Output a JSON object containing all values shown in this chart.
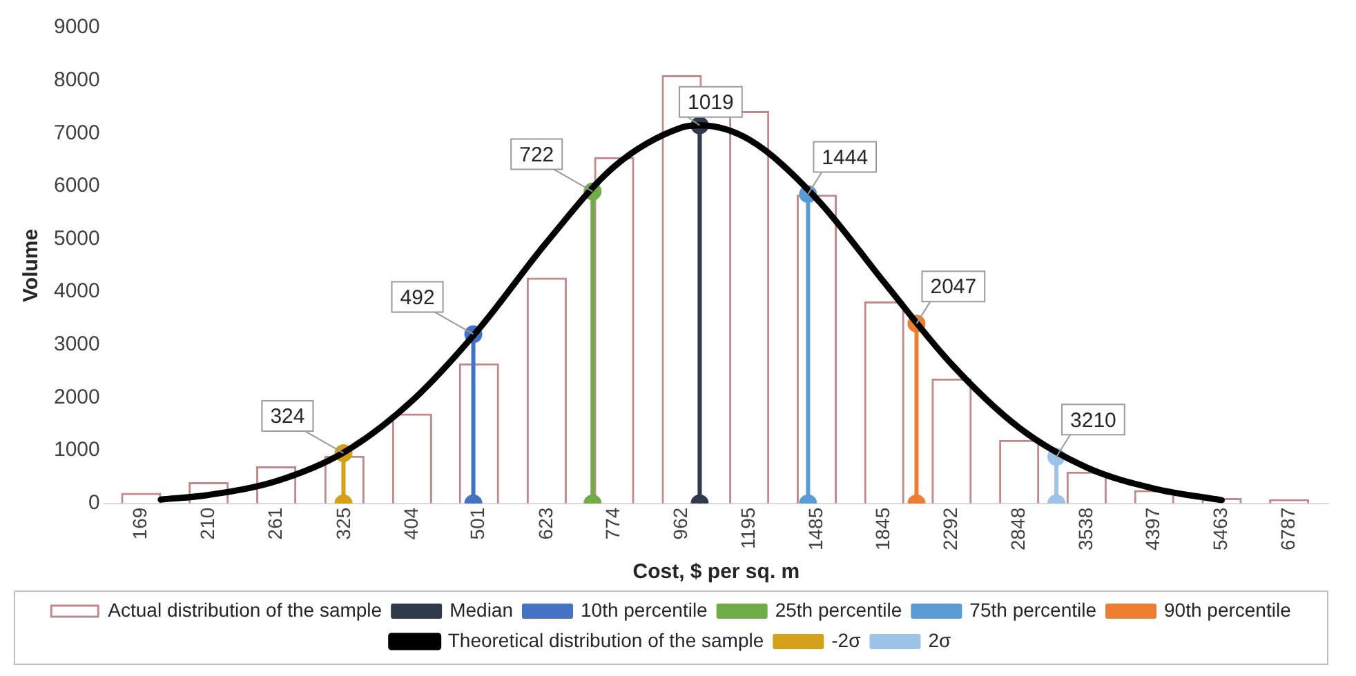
{
  "chart_data": {
    "type": "bar",
    "xlabel": "Cost, $ per sq. m",
    "ylabel": "Volume",
    "log": "x",
    "x": [
      169,
      210,
      261,
      325,
      404,
      501,
      623,
      774,
      962,
      1195,
      1485,
      1845,
      2292,
      2848,
      3538,
      4397,
      5463,
      6787
    ],
    "xlim": [
      150,
      7700
    ],
    "xticks": [
      169,
      210,
      261,
      325,
      404,
      501,
      623,
      774,
      962,
      1195,
      1485,
      1845,
      2292,
      2848,
      3538,
      4397,
      5463,
      6787
    ],
    "ylim": [
      0,
      9000
    ],
    "yticks": [
      0,
      1000,
      2000,
      3000,
      4000,
      5000,
      6000,
      7000,
      8000,
      9000
    ],
    "grid": false,
    "legend": "bottom",
    "series": [
      {
        "name": "Actual distribution of the sample",
        "color": "#c08a8a",
        "values": [
          200,
          400,
          700,
          900,
          1700,
          2650,
          4270,
          6550,
          8100,
          7420,
          5840,
          3820,
          2360,
          1200,
          600,
          250,
          100,
          80
        ]
      },
      {
        "name": "Median",
        "type": "line",
        "marker": "circle",
        "color": "#2f3a4c",
        "x": [
          1019,
          1019
        ],
        "values": [
          0,
          7150
        ]
      },
      {
        "name": "10th percentile",
        "type": "line",
        "marker": "circle",
        "color": "#4472c4",
        "x": [
          492,
          492
        ],
        "values": [
          0,
          3200
        ]
      },
      {
        "name": "25th percentile",
        "type": "line",
        "marker": "circle",
        "color": "#70ad47",
        "x": [
          722,
          722
        ],
        "values": [
          0,
          5900
        ]
      },
      {
        "name": "75th percentile",
        "type": "line",
        "marker": "circle",
        "color": "#5b9bd5",
        "x": [
          1444,
          1444
        ],
        "values": [
          0,
          5850
        ]
      },
      {
        "name": "90th percentile",
        "type": "line",
        "marker": "circle",
        "color": "#ed7d31",
        "x": [
          2047,
          2047
        ],
        "values": [
          0,
          3400
        ]
      },
      {
        "name": "Theoretical distribution of the sample",
        "type": "line",
        "marker": "none",
        "color": "#000000",
        "x": [
          180,
          210,
          261,
          325,
          404,
          501,
          623,
          774,
          962,
          1019,
          1195,
          1485,
          1845,
          2292,
          2848,
          3538,
          4397,
          5463
        ],
        "values": [
          70,
          160,
          420,
          970,
          1940,
          3300,
          4940,
          6370,
          7110,
          7150,
          6880,
          5760,
          4180,
          2630,
          1430,
          680,
          280,
          60
        ]
      },
      {
        "name": "-2σ",
        "type": "line",
        "marker": "circle",
        "color": "#d4a017",
        "x": [
          324,
          324
        ],
        "values": [
          0,
          950
        ]
      },
      {
        "name": "2σ",
        "type": "line",
        "marker": "circle",
        "color": "#9dc3e6",
        "x": [
          3210,
          3210
        ],
        "values": [
          0,
          880
        ]
      }
    ],
    "annotations": [
      {
        "text": "324",
        "x": 324,
        "y": 950
      },
      {
        "text": "492",
        "x": 492,
        "y": 3200
      },
      {
        "text": "722",
        "x": 722,
        "y": 5900
      },
      {
        "text": "1019",
        "x": 1019,
        "y": 7150
      },
      {
        "text": "1444",
        "x": 1444,
        "y": 5850
      },
      {
        "text": "2047",
        "x": 2047,
        "y": 3400
      },
      {
        "text": "3210",
        "x": 3210,
        "y": 880
      }
    ]
  }
}
